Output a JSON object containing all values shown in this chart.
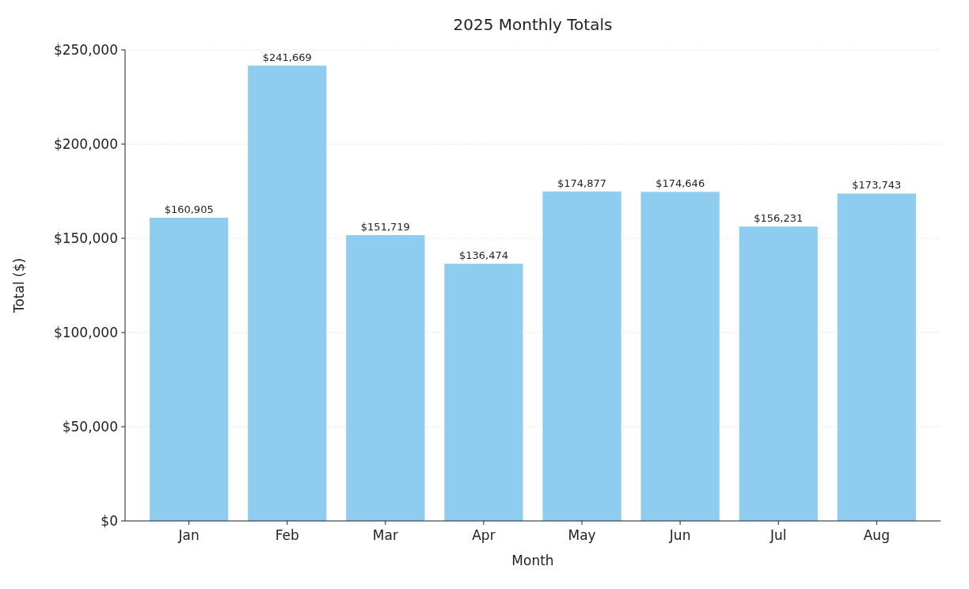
{
  "chart_data": {
    "type": "bar",
    "title": "2025 Monthly Totals",
    "xlabel": "Month",
    "ylabel": "Total ($)",
    "categories": [
      "Jan",
      "Feb",
      "Mar",
      "Apr",
      "May",
      "Jun",
      "Jul",
      "Aug"
    ],
    "values": [
      160905,
      241669,
      151719,
      136474,
      174877,
      174646,
      156231,
      173743
    ],
    "value_labels": [
      "$160,905",
      "$241,669",
      "$151,719",
      "$136,474",
      "$174,877",
      "$174,646",
      "$156,231",
      "$173,743"
    ],
    "color": "#8ecdf0",
    "ylim": [
      0,
      250000
    ],
    "yticks": [
      {
        "value": 0,
        "label": "$0"
      },
      {
        "value": 50000,
        "label": "$50,000"
      },
      {
        "value": 100000,
        "label": "$100,000"
      },
      {
        "value": 150000,
        "label": "$150,000"
      },
      {
        "value": 200000,
        "label": "$200,000"
      },
      {
        "value": 250000,
        "label": "$250,000"
      }
    ],
    "grid": "y"
  }
}
